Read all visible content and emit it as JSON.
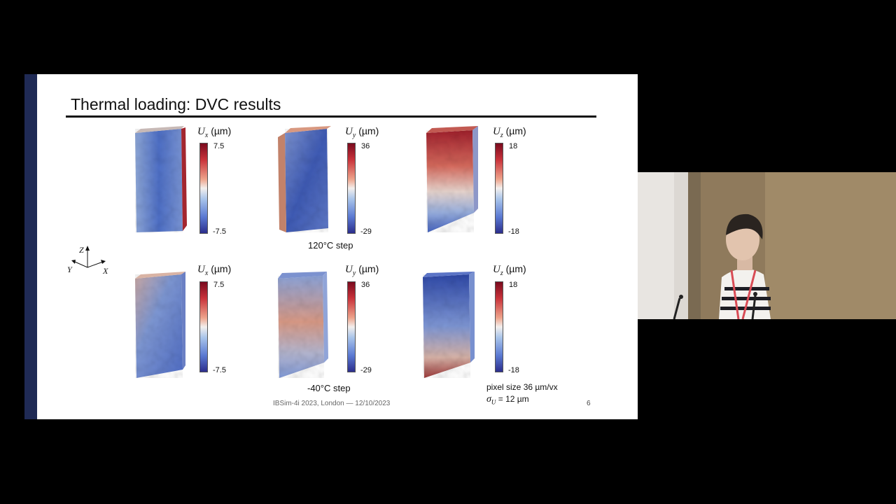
{
  "slide": {
    "title": "Thermal loading: DVC results",
    "rows": [
      {
        "step_label": "120°C step",
        "panels": [
          {
            "quantity": "U",
            "subscript": "x",
            "unit": "(µm)",
            "max": "7.5",
            "min": "-7.5"
          },
          {
            "quantity": "U",
            "subscript": "y",
            "unit": "(µm)",
            "max": "36",
            "min": "-29"
          },
          {
            "quantity": "U",
            "subscript": "z",
            "unit": "(µm)",
            "max": "18",
            "min": "-18"
          }
        ]
      },
      {
        "step_label": "-40°C step",
        "panels": [
          {
            "quantity": "U",
            "subscript": "x",
            "unit": "(µm)",
            "max": "7.5",
            "min": "-7.5"
          },
          {
            "quantity": "U",
            "subscript": "y",
            "unit": "(µm)",
            "max": "36",
            "min": "-29"
          },
          {
            "quantity": "U",
            "subscript": "z",
            "unit": "(µm)",
            "max": "18",
            "min": "-18"
          }
        ]
      }
    ],
    "axes": {
      "z": "Z",
      "y": "Y",
      "x": "X"
    },
    "pixel_size": "pixel size 36 µm/vx",
    "sigma_symbol": "σ",
    "sigma_sub": "U",
    "sigma_value": " = 12 µm",
    "footer": "IBSim-4i 2023, London — 12/10/2023",
    "page_number": "6"
  },
  "colors": {
    "sidebar": "#1f2a55",
    "colormap_max": "#7a0a1e",
    "colormap_mid": "#f3efed",
    "colormap_min": "#2c2e8c"
  }
}
